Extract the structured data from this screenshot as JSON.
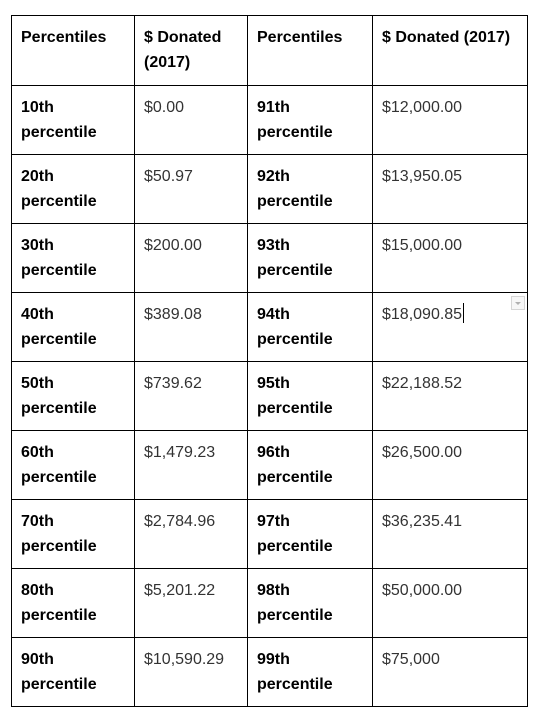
{
  "table": {
    "headers": [
      "Percentiles",
      "$ Donated (2017)",
      "Percentiles",
      "$ Donated (2017)"
    ],
    "rows": [
      [
        "10th percentile",
        "$0.00",
        "91th percentile",
        "$12,000.00"
      ],
      [
        "20th percentile",
        "$50.97",
        "92th percentile",
        "$13,950.05"
      ],
      [
        "30th percentile",
        "$200.00",
        "93th percentile",
        "$15,000.00"
      ],
      [
        "40th percentile",
        "$389.08",
        "94th percentile",
        "$18,090.85"
      ],
      [
        "50th percentile",
        "$739.62",
        "95th percentile",
        "$22,188.52"
      ],
      [
        "60th percentile",
        "$1,479.23",
        "96th percentile",
        "$26,500.00"
      ],
      [
        "70th percentile",
        "$2,784.96",
        "97th percentile",
        "$36,235.41"
      ],
      [
        "80th percentile",
        "$5,201.22",
        "98th percentile",
        "$50,000.00"
      ],
      [
        "90th percentile",
        "$10,590.29",
        "99th percentile",
        "$75,000"
      ]
    ]
  },
  "active_cell": {
    "row": 3,
    "col": 3
  },
  "icons": {
    "cell_menu": "dropdown-arrow-icon"
  }
}
